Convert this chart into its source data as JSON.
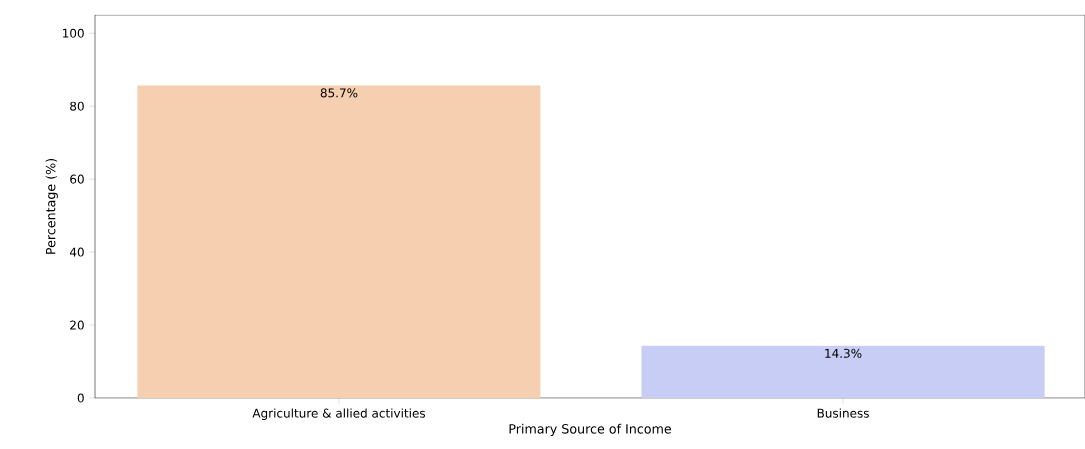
{
  "chart_data": {
    "type": "bar",
    "xlabel": "Primary Source of Income",
    "ylabel": "Percentage (%)",
    "categories": [
      "Agriculture & allied activities",
      "Business"
    ],
    "values": [
      85.7,
      14.3
    ],
    "colors": [
      "#f5cfb0",
      "#c8cdf5"
    ],
    "value_labels": [
      "85.7%",
      "14.3%"
    ],
    "ylim": [
      0,
      105
    ],
    "yticks": [
      0,
      20,
      40,
      60,
      80,
      100
    ],
    "grid": false
  }
}
